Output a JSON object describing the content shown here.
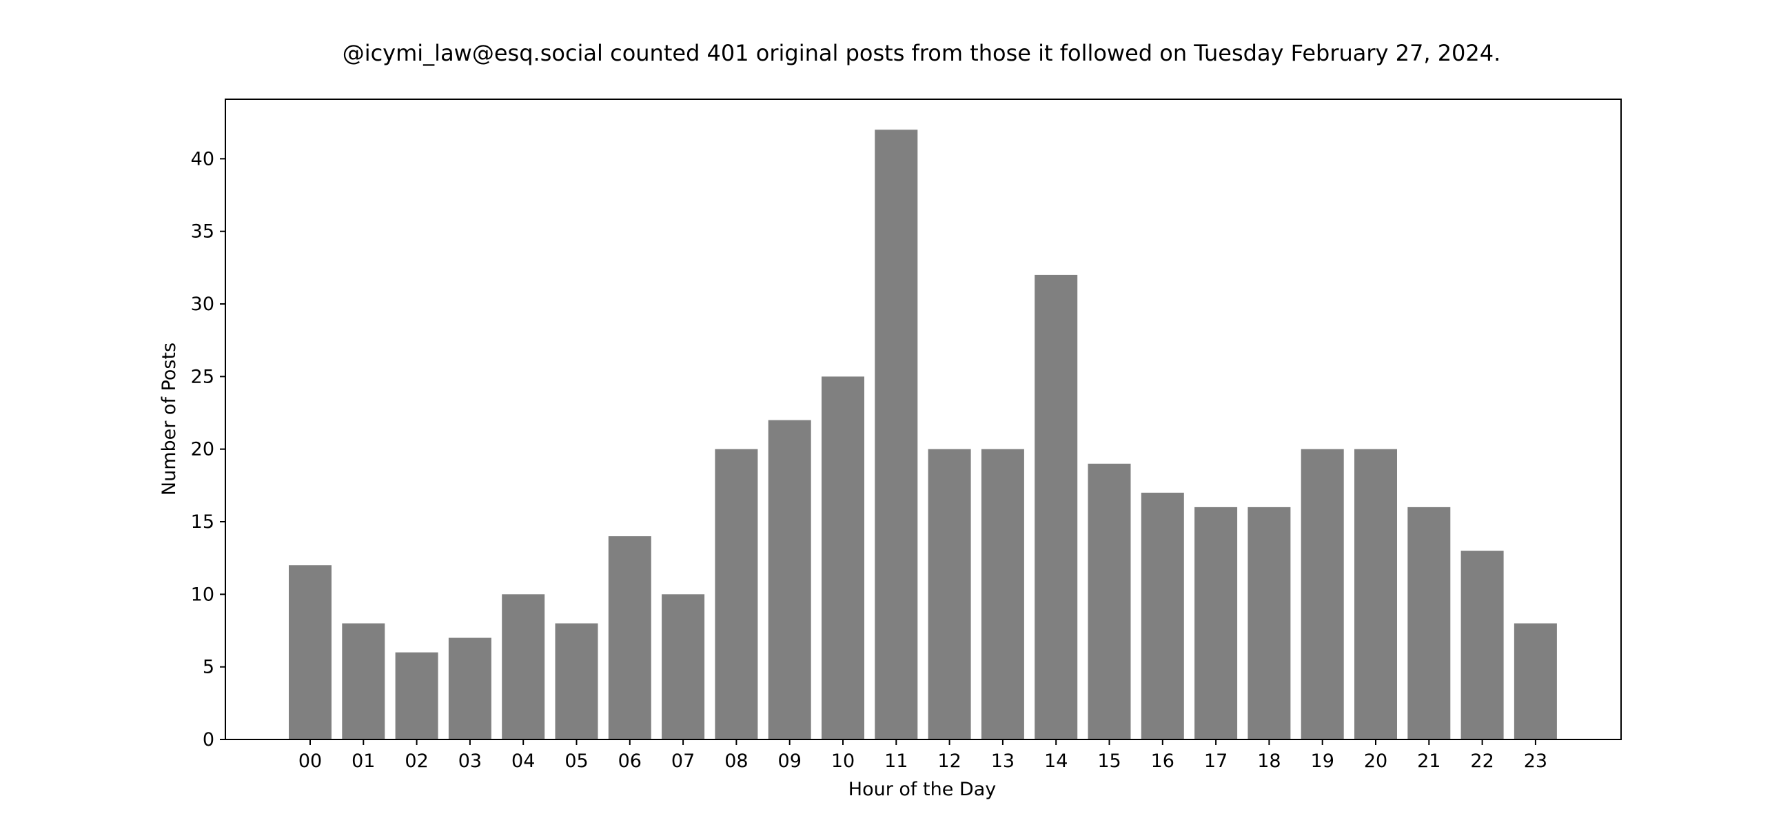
{
  "chart_data": {
    "type": "bar",
    "title": "@icymi_law@esq.social counted 401 original posts from those it followed on Tuesday February 27, 2024.",
    "xlabel": "Hour of the Day",
    "ylabel": "Number of Posts",
    "categories": [
      "00",
      "01",
      "02",
      "03",
      "04",
      "05",
      "06",
      "07",
      "08",
      "09",
      "10",
      "11",
      "12",
      "13",
      "14",
      "15",
      "16",
      "17",
      "18",
      "19",
      "20",
      "21",
      "22",
      "23"
    ],
    "values": [
      12,
      8,
      6,
      7,
      10,
      8,
      14,
      10,
      20,
      22,
      25,
      42,
      20,
      20,
      32,
      19,
      17,
      16,
      16,
      20,
      20,
      16,
      13,
      8
    ],
    "ylim": [
      0,
      44.1
    ],
    "yticks": [
      0,
      5,
      10,
      15,
      20,
      25,
      30,
      35,
      40
    ],
    "grid": false,
    "legend": "none",
    "bar_color": "#808080"
  }
}
